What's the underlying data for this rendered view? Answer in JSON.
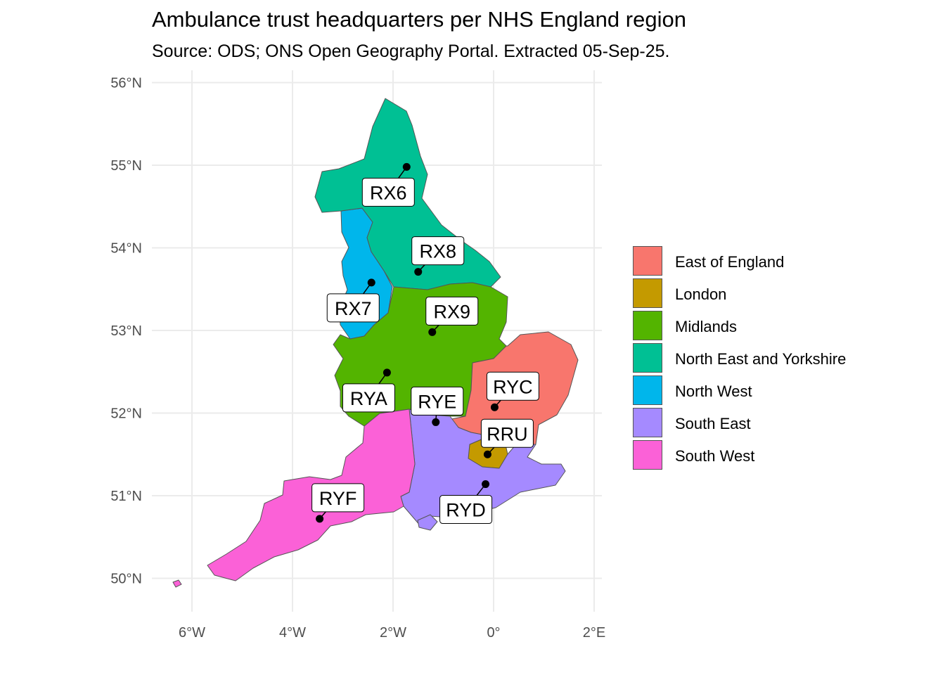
{
  "header": {
    "title": "Ambulance trust headquarters per NHS England region",
    "subtitle": "Source: ODS; ONS Open Geography Portal. Extracted 05-Sep-25."
  },
  "map": {
    "lon_range": [
      -6.8,
      2.2
    ],
    "lat_range": [
      49.6,
      56.2
    ],
    "lat_ticks": [
      {
        "value": 56,
        "label": "56°N"
      },
      {
        "value": 55,
        "label": "55°N"
      },
      {
        "value": 54,
        "label": "54°N"
      },
      {
        "value": 53,
        "label": "53°N"
      },
      {
        "value": 52,
        "label": "52°N"
      },
      {
        "value": 51,
        "label": "51°N"
      },
      {
        "value": 50,
        "label": "50°N"
      }
    ],
    "lon_ticks": [
      {
        "value": -6,
        "label": "6°W"
      },
      {
        "value": -4,
        "label": "4°W"
      },
      {
        "value": -2,
        "label": "2°W"
      },
      {
        "value": 0,
        "label": "0°"
      },
      {
        "value": 2,
        "label": "2°E"
      }
    ],
    "grid": true,
    "colors": {
      "east_of_england": "#F8766D",
      "london": "#C49A00",
      "midlands": "#53B400",
      "north_east_and_yorkshire": "#00C094",
      "north_west": "#00B6EB",
      "south_east": "#A58AFF",
      "south_west": "#FB61D7",
      "border": "#555555"
    },
    "headquarters": [
      {
        "code": "RX6",
        "lon": -1.73,
        "lat": 54.98
      },
      {
        "code": "RX8",
        "lon": -1.5,
        "lat": 53.71
      },
      {
        "code": "RX7",
        "lon": -2.43,
        "lat": 53.58
      },
      {
        "code": "RX9",
        "lon": -1.22,
        "lat": 52.98
      },
      {
        "code": "RYA",
        "lon": -2.12,
        "lat": 52.49
      },
      {
        "code": "RYE",
        "lon": -1.15,
        "lat": 51.89
      },
      {
        "code": "RYC",
        "lon": 0.02,
        "lat": 52.07
      },
      {
        "code": "RRU",
        "lon": -0.12,
        "lat": 51.5
      },
      {
        "code": "RYD",
        "lon": -0.16,
        "lat": 51.14
      },
      {
        "code": "RYF",
        "lon": -3.46,
        "lat": 50.72
      }
    ]
  },
  "legend": {
    "placement": "right",
    "items": [
      {
        "label": "East of England",
        "color": "#F8766D"
      },
      {
        "label": "London",
        "color": "#C49A00"
      },
      {
        "label": "Midlands",
        "color": "#53B400"
      },
      {
        "label": "North East and Yorkshire",
        "color": "#00C094"
      },
      {
        "label": "North West",
        "color": "#00B6EB"
      },
      {
        "label": "South East",
        "color": "#A58AFF"
      },
      {
        "label": "South West",
        "color": "#FB61D7"
      }
    ]
  }
}
